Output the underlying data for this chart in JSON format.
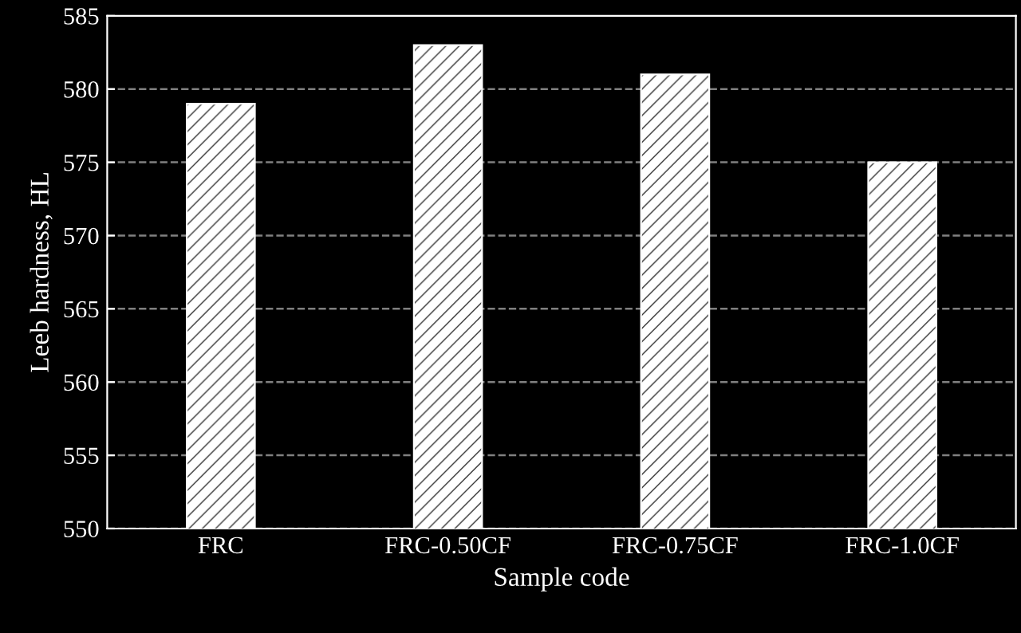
{
  "chart_data": {
    "type": "bar",
    "xlabel": "Sample code",
    "ylabel": "Leeb hardness, HL",
    "categories": [
      "FRC",
      "FRC-0.50CF",
      "FRC-0.75CF",
      "FRC-1.0CF"
    ],
    "values": [
      579,
      583,
      581,
      575
    ],
    "color": "#ffffff",
    "ylim": [
      550,
      585
    ],
    "yticks": [
      550,
      555,
      560,
      565,
      570,
      575,
      580,
      585
    ],
    "grid": "y",
    "legend": false
  }
}
